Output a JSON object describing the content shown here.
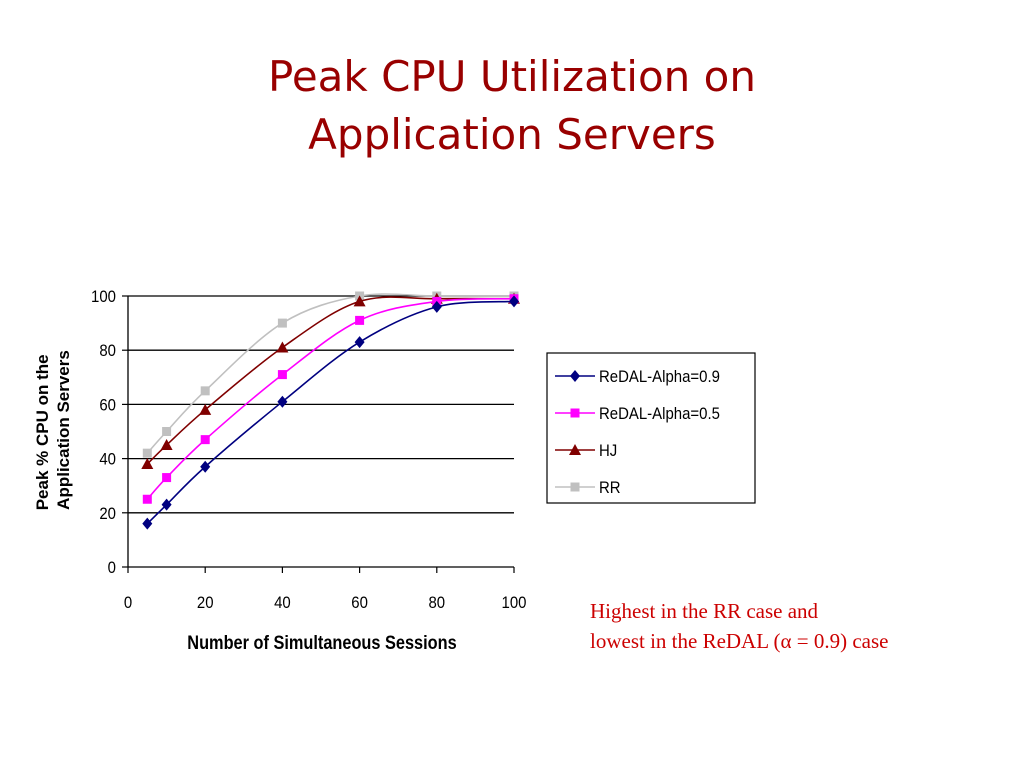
{
  "slide": {
    "title_line1": "Peak CPU Utilization on",
    "title_line2": "Application Servers",
    "caption_line1": "Highest in the RR case and",
    "caption_line2": "lowest in the ReDAL (α = 0.9) case"
  },
  "chart_data": {
    "type": "line",
    "title": "",
    "xlabel": "Number of Simultaneous Sessions",
    "ylabel_lines": [
      "Peak % CPU on the",
      "Application Servers"
    ],
    "xlim": [
      0,
      100
    ],
    "ylim": [
      0,
      100
    ],
    "xticks": [
      0,
      20,
      40,
      60,
      80,
      100
    ],
    "yticks": [
      0,
      20,
      40,
      60,
      80,
      100
    ],
    "grid": "horizontal",
    "legend_position": "right",
    "series": [
      {
        "name": "ReDAL-Alpha=0.9",
        "color": "#000080",
        "marker": "diamond",
        "x": [
          5,
          10,
          20,
          40,
          60,
          80,
          100
        ],
        "y": [
          16,
          23,
          37,
          61,
          83,
          96,
          98
        ]
      },
      {
        "name": "ReDAL-Alpha=0.5",
        "color": "#ff00ff",
        "marker": "square",
        "x": [
          5,
          10,
          20,
          40,
          60,
          80,
          100
        ],
        "y": [
          25,
          33,
          47,
          71,
          91,
          98,
          99
        ]
      },
      {
        "name": "HJ",
        "color": "#800000",
        "marker": "triangle",
        "x": [
          5,
          10,
          20,
          40,
          60,
          80,
          100
        ],
        "y": [
          38,
          45,
          58,
          81,
          98,
          99,
          99
        ]
      },
      {
        "name": "RR",
        "color": "#c0c0c0",
        "marker": "square",
        "x": [
          5,
          10,
          20,
          40,
          60,
          80,
          100
        ],
        "y": [
          42,
          50,
          65,
          90,
          100,
          100,
          100
        ]
      }
    ]
  }
}
